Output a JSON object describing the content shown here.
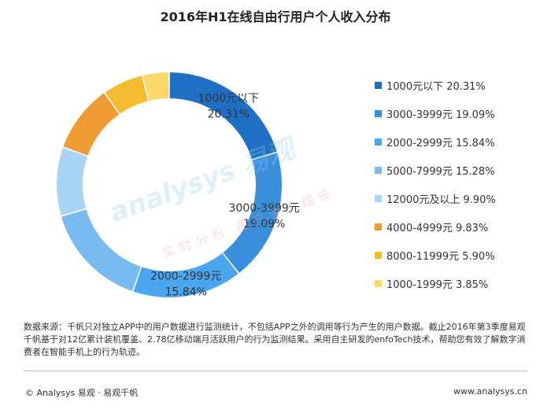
{
  "page": {
    "title": "2016年H1在线自由行用户个人收入分布",
    "note": "数据来源：千帆只对独立APP中的用户数据进行监测统计，不包括APP之外的调用等行为产生的用户数据。截止2016年第3季度易观千帆基于对12亿累计装机覆盖、2.78亿移动端月活跃用户的行为监测结果。采用自主研发的enfoTech技术，帮助您有效了解数字消费者在智能手机上的行为轨迹。",
    "footer_left": "© Analysys 易观 · 易观千帆",
    "footer_right": "www.analysys.cn",
    "watermark": "analysys 易观",
    "watermark_sub": "实时分析 用户资产成长"
  },
  "chart_data": {
    "type": "pie",
    "donut": true,
    "title": "2016年H1在线自由行用户个人收入分布",
    "legend_position": "right",
    "categories": [
      "1000元以下",
      "3000-3999元",
      "2000-2999元",
      "5000-7999元",
      "12000元及以上",
      "4000-4999元",
      "8000-11999元",
      "1000-1999元"
    ],
    "values": [
      20.31,
      19.09,
      15.84,
      15.28,
      9.9,
      9.83,
      5.9,
      3.85
    ],
    "unit": "%",
    "colors": [
      "#1f6fc5",
      "#3a8fdd",
      "#4aa6f0",
      "#78bbf0",
      "#a8d4f6",
      "#ef9b34",
      "#f4bb31",
      "#fbd968"
    ],
    "legend": [
      "1000元以下 20.31%",
      "3000-3999元 19.09%",
      "2000-2999元 15.84%",
      "5000-7999元 15.28%",
      "12000元及以上 9.90%",
      "4000-4999元 9.83%",
      "8000-11999元 5.90%",
      "1000-1999元 3.85%"
    ],
    "data_labels": [
      {
        "category": "1000元以下",
        "line1": "1000元以下",
        "line2": "20.31%"
      },
      {
        "category": "3000-3999元",
        "line1": "3000-3999元",
        "line2": "19.09%"
      },
      {
        "category": "2000-2999元",
        "line1": "2000-2999元",
        "line2": "15.84%"
      }
    ]
  }
}
